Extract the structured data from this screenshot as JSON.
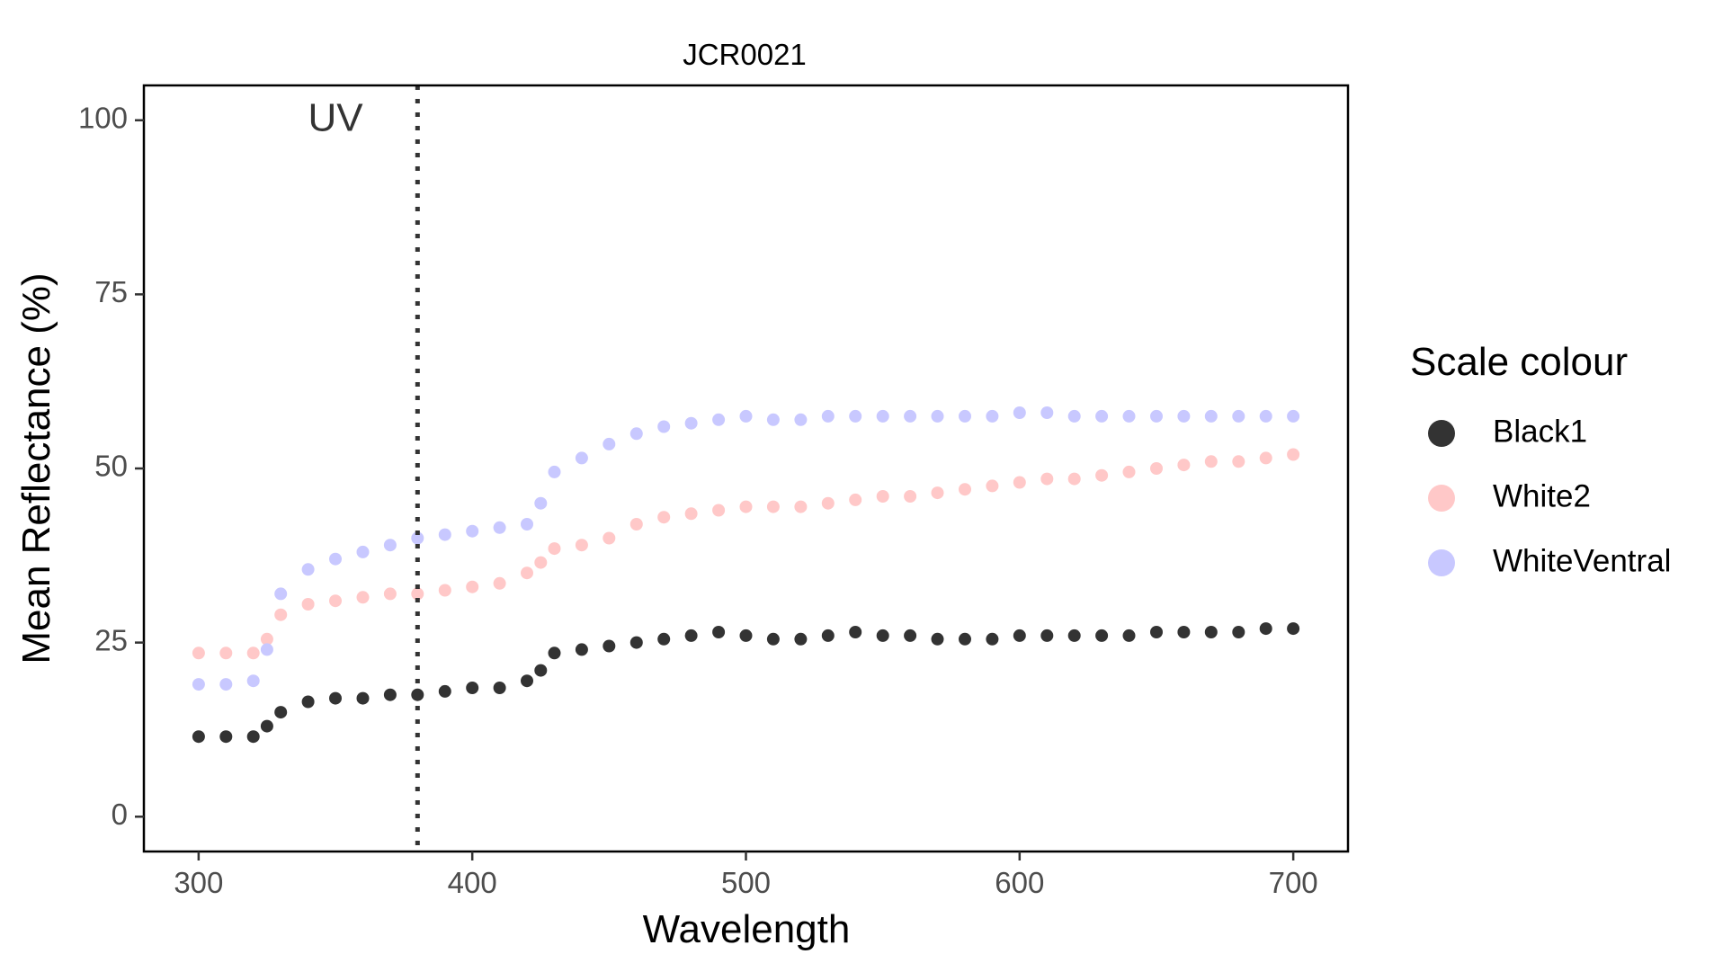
{
  "chart_data": {
    "type": "scatter",
    "title": "JCR0021",
    "xlabel": "Wavelength",
    "ylabel": "Mean Reflectance (%)",
    "xlim": [
      280,
      720
    ],
    "ylim": [
      -5,
      105
    ],
    "x_ticks": [
      300,
      400,
      500,
      600,
      700
    ],
    "y_ticks": [
      0,
      25,
      50,
      75,
      100
    ],
    "grid": false,
    "legend": {
      "title": "Scale colour",
      "position": "right"
    },
    "annotations": [
      {
        "type": "vline",
        "x": 380,
        "style": "dotted",
        "color": "#333333"
      },
      {
        "type": "text",
        "text": "UV",
        "x": 350,
        "y": 100
      }
    ],
    "x": [
      300,
      310,
      320,
      325,
      330,
      340,
      350,
      360,
      370,
      380,
      390,
      400,
      410,
      420,
      425,
      430,
      440,
      450,
      460,
      470,
      480,
      490,
      500,
      510,
      520,
      530,
      540,
      550,
      560,
      570,
      580,
      590,
      600,
      610,
      620,
      630,
      640,
      650,
      660,
      670,
      680,
      690,
      700
    ],
    "series": [
      {
        "name": "Black1",
        "color": "#333333",
        "values": [
          11.5,
          11.5,
          11.5,
          13,
          15,
          16.5,
          17,
          17,
          17.5,
          17.5,
          18,
          18.5,
          18.5,
          19.5,
          21,
          23.5,
          24,
          24.5,
          25,
          25.5,
          26,
          26.5,
          26,
          25.5,
          25.5,
          26,
          26.5,
          26,
          26,
          25.5,
          25.5,
          25.5,
          26,
          26,
          26,
          26,
          26,
          26.5,
          26.5,
          26.5,
          26.5,
          27,
          27
        ]
      },
      {
        "name": "White2",
        "color": "#ffc8c8",
        "values": [
          23.5,
          23.5,
          23.5,
          25.5,
          29,
          30.5,
          31,
          31.5,
          32,
          32,
          32.5,
          33,
          33.5,
          35,
          36.5,
          38.5,
          39,
          40,
          42,
          43,
          43.5,
          44,
          44.5,
          44.5,
          44.5,
          45,
          45.5,
          46,
          46,
          46.5,
          47,
          47.5,
          48,
          48.5,
          48.5,
          49,
          49.5,
          50,
          50.5,
          51,
          51,
          51.5,
          52
        ]
      },
      {
        "name": "WhiteVentral",
        "color": "#c8c8ff",
        "values": [
          19,
          19,
          19.5,
          24,
          32,
          35.5,
          37,
          38,
          39,
          40,
          40.5,
          41,
          41.5,
          42,
          45,
          49.5,
          51.5,
          53.5,
          55,
          56,
          56.5,
          57,
          57.5,
          57,
          57,
          57.5,
          57.5,
          57.5,
          57.5,
          57.5,
          57.5,
          57.5,
          58,
          58,
          57.5,
          57.5,
          57.5,
          57.5,
          57.5,
          57.5,
          57.5,
          57.5,
          57.5
        ]
      }
    ]
  }
}
